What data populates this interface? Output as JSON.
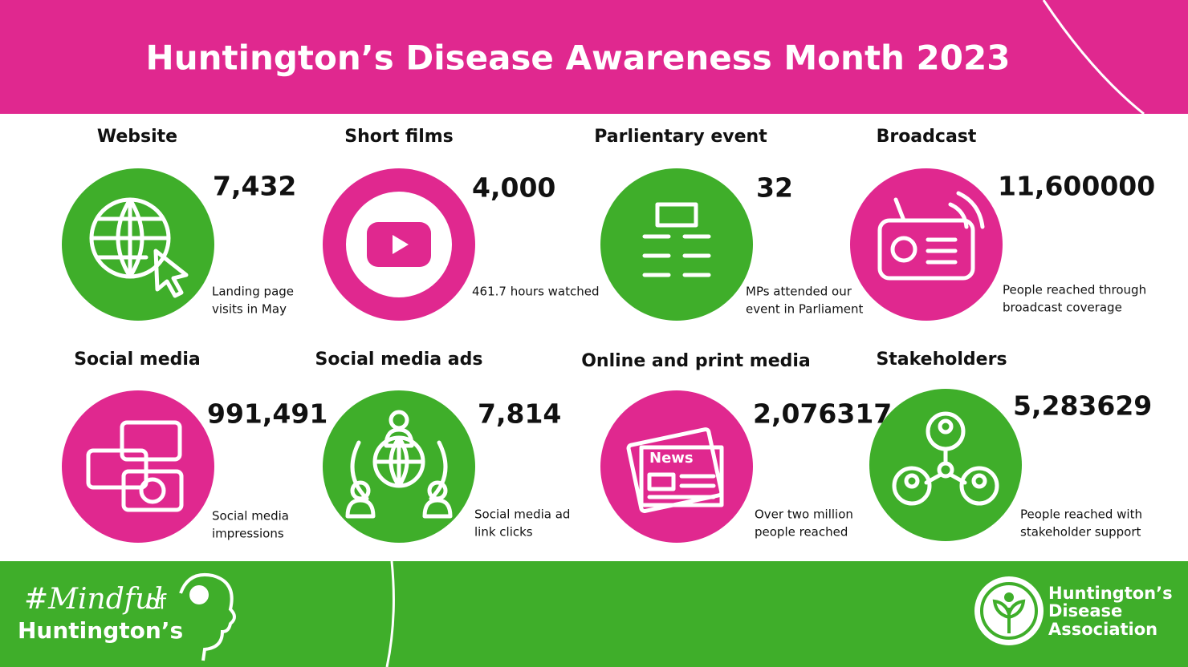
{
  "header": {
    "title": "Huntington’s Disease Awareness Month 2023"
  },
  "stats": [
    {
      "heading": "Website",
      "figure": "7,432",
      "caption": [
        "Landing page",
        "visits in May"
      ]
    },
    {
      "heading": "Short films",
      "figure": "4,000",
      "caption": [
        "461.7 hours watched"
      ]
    },
    {
      "heading": "Parlientary event",
      "figure": "32",
      "caption": [
        "MPs attended our",
        "event in Parliament"
      ]
    },
    {
      "heading": "Broadcast",
      "figure": "11,600000",
      "caption": [
        "People reached through",
        "broadcast coverage"
      ]
    },
    {
      "heading": "Social media",
      "figure": "991,491",
      "caption": [
        "Social media",
        "impressions"
      ]
    },
    {
      "heading": "Social media ads",
      "figure": "7,814",
      "caption": [
        "Social media ad",
        "link clicks"
      ]
    },
    {
      "heading": "Online and print media",
      "figure": "2,076317",
      "caption": [
        "Over two million",
        "people reached"
      ]
    },
    {
      "heading": "Stakeholders",
      "figure": "5,283629",
      "caption": [
        "People reached with",
        "stakeholder support"
      ]
    }
  ],
  "icon_text": {
    "news": "News"
  },
  "footer": {
    "hashtag": "#Mindful",
    "hashtag_of": "of",
    "hashtag_name": "Huntington’s",
    "logo_lines": [
      "Huntington’s",
      "Disease",
      "Association"
    ]
  }
}
